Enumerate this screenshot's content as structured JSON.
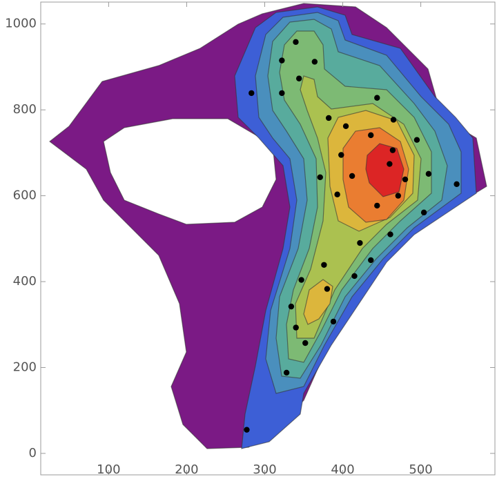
{
  "chart_data": {
    "type": "contour",
    "x": [
      339.8,
      322,
      364,
      344,
      283,
      322,
      444,
      382,
      404,
      465,
      436,
      495,
      464,
      398,
      460,
      412,
      371,
      510,
      480,
      546,
      471,
      393,
      444,
      504,
      461,
      422,
      436,
      376,
      415,
      347,
      380,
      334,
      340,
      388,
      352,
      328,
      277
    ],
    "y": [
      958,
      915,
      912,
      873,
      839,
      839,
      828,
      781,
      762,
      777,
      741,
      730,
      706,
      695,
      674,
      646,
      643,
      651,
      638,
      627,
      600,
      603,
      577,
      561,
      510,
      490,
      450,
      439,
      413,
      404,
      383,
      342,
      293,
      307,
      257,
      188,
      55
    ],
    "point_color": "#000000",
    "xlim": [
      13,
      595
    ],
    "ylim": [
      -50,
      1051
    ],
    "xticks": [
      100,
      200,
      300,
      400,
      500
    ],
    "yticks": [
      0,
      200,
      400,
      600,
      800,
      1000
    ]
  }
}
